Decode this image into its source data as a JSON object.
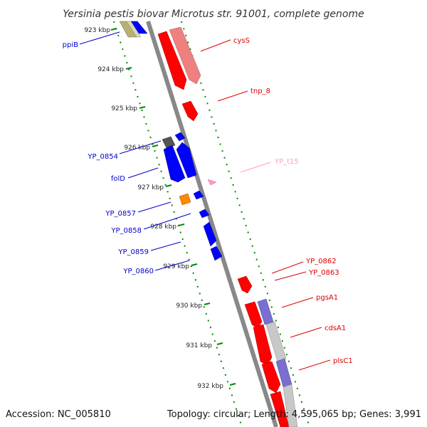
{
  "title": "Yersinia pestis biovar Microtus str. 91001, complete genome",
  "accession": "Accession: NC_005810",
  "topology": "Topology: circular; Length: 4,595,065 bp; Genes: 3,991",
  "colors": {
    "forward_gene": "#ff0000",
    "forward_cds": "#ef8080",
    "reverse_gene": "#0000ff",
    "reverse_cds": "#7a6fd0",
    "trna": "#ff99cc",
    "backbone": "#888888",
    "tick": "#008800",
    "other": "#ff8800"
  },
  "ticks": [
    "923 kbp",
    "924 kbp",
    "925 kbp",
    "926 kbp",
    "927 kbp",
    "928 kbp",
    "929 kbp",
    "930 kbp",
    "931 kbp",
    "932 kbp"
  ],
  "left_labels": [
    "ppiB",
    "YP_0854",
    "folD",
    "YP_0857",
    "YP_0858",
    "YP_0859",
    "YP_0860"
  ],
  "right_labels": [
    "cysS",
    "tnp_8",
    "YP_t15",
    "YP_0862",
    "YP_0863",
    "pgsA1",
    "cdsA1",
    "plsC1"
  ]
}
